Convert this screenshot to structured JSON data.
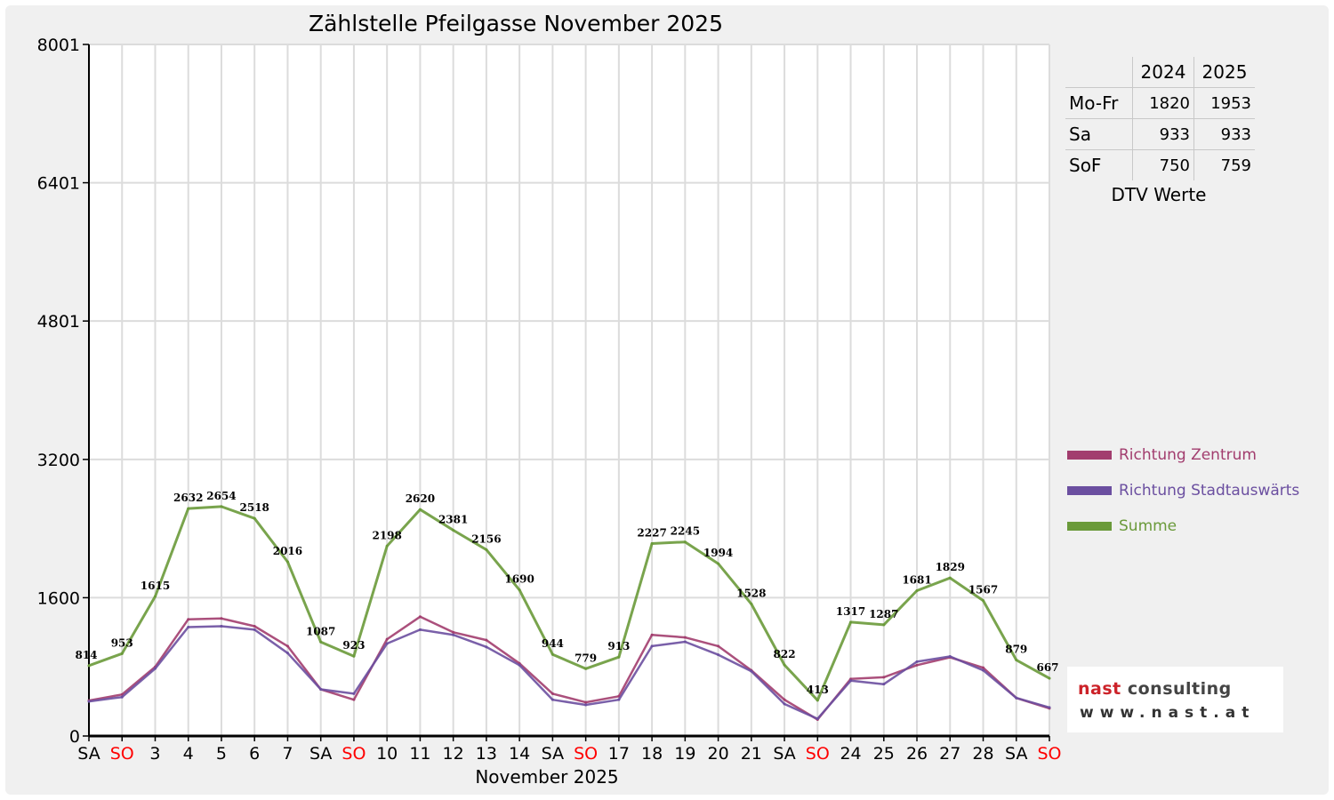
{
  "chart_data": {
    "type": "line",
    "title": "Zählstelle Pfeilgasse November 2025",
    "xlabel": "November 2025",
    "ylabel": "",
    "ylim": [
      0,
      8001
    ],
    "yticks": [
      0,
      1600,
      3200,
      4801,
      6401,
      8001
    ],
    "grid": true,
    "legend_position": "right",
    "categories": [
      "SA",
      "SO",
      "3",
      "4",
      "5",
      "6",
      "7",
      "SA",
      "SO",
      "10",
      "11",
      "12",
      "13",
      "14",
      "SA",
      "SO",
      "17",
      "18",
      "19",
      "20",
      "21",
      "SA",
      "SO",
      "24",
      "25",
      "26",
      "27",
      "28",
      "SA",
      "SO"
    ],
    "weekend_color": "#ff0000",
    "weekend_labels": [
      "SO"
    ],
    "series": [
      {
        "name": "Richtung Zentrum",
        "color": "#a23d6e",
        "values": [
          410,
          480,
          800,
          1350,
          1360,
          1270,
          1040,
          540,
          420,
          1120,
          1380,
          1200,
          1110,
          840,
          490,
          390,
          460,
          1170,
          1140,
          1040,
          760,
          420,
          190,
          660,
          680,
          820,
          910,
          790,
          440,
          320
        ]
      },
      {
        "name": "Richtung Stadtauswärts",
        "color": "#6b4fa0",
        "values": [
          400,
          450,
          780,
          1260,
          1270,
          1230,
          960,
          540,
          490,
          1070,
          1230,
          1170,
          1030,
          820,
          420,
          360,
          420,
          1040,
          1090,
          940,
          750,
          370,
          200,
          640,
          600,
          860,
          920,
          760,
          440,
          330
        ]
      },
      {
        "name": "Summe",
        "color": "#6a9a3a",
        "values": [
          814,
          953,
          1615,
          2632,
          2654,
          2518,
          2016,
          1087,
          923,
          2198,
          2620,
          2381,
          2156,
          1690,
          944,
          779,
          913,
          2227,
          2245,
          1994,
          1528,
          822,
          413,
          1317,
          1287,
          1681,
          1829,
          1567,
          879,
          667
        ]
      }
    ],
    "data_labels": [
      "814",
      "953",
      "1615",
      "2632",
      "2654",
      "2518",
      "2016",
      "1087",
      "923",
      "2198",
      "2620",
      "2381",
      "2156",
      "1690",
      "944",
      "779",
      "913",
      "2227",
      "2245",
      "1994",
      "1528",
      "822",
      "413",
      "1317",
      "1287",
      "1681",
      "1829",
      "1567",
      "879",
      "667"
    ]
  },
  "dtv_table": {
    "headers": [
      "",
      "2024",
      "2025"
    ],
    "rows": [
      {
        "label": "Mo-Fr",
        "v2024": "1820",
        "v2025": "1953"
      },
      {
        "label": "Sa",
        "v2024": "933",
        "v2025": "933"
      },
      {
        "label": "SoF",
        "v2024": "750",
        "v2025": "759"
      }
    ],
    "caption": "DTV Werte"
  },
  "logo": {
    "main_part1": "nast",
    "main_part2": " consulting",
    "url": "www.nast.at",
    "color_red": "#cc2229",
    "color_dark": "#444444"
  }
}
